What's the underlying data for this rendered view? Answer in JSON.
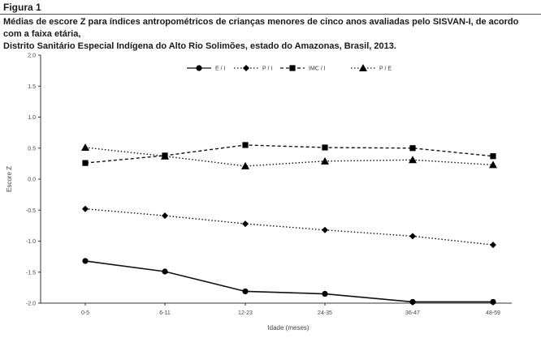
{
  "figure_label": "Figura 1",
  "caption_line1": "Médias de escore Z para índices antropométricos de crianças menores de cinco anos avaliadas pelo SISVAN-I, de acordo com a faixa etária,",
  "caption_line2": "Distrito Sanitário Especial Indígena do Alto Rio Solimões, estado do Amazonas, Brasil, 2013.",
  "chart_data": {
    "type": "line",
    "title": "",
    "xlabel": "Idade (meses)",
    "ylabel": "Escore Z",
    "categories": [
      "0-5",
      "6-11",
      "12-23",
      "24-35",
      "36-47",
      "48-59"
    ],
    "ylim": [
      -2.0,
      2.0
    ],
    "yticks": [
      2.0,
      1.5,
      1.0,
      0.5,
      0.0,
      -0.5,
      -1.0,
      -1.5,
      -2.0
    ],
    "ytick_labels": [
      "2.0",
      "1.5",
      "1.0",
      "0.5",
      "0.0",
      "-0.5",
      "-1.0",
      "-1.5",
      "-2.0"
    ],
    "grid": false,
    "legend_position": "top-center",
    "series": [
      {
        "name": "E / I",
        "values": [
          -1.32,
          -1.49,
          -1.81,
          -1.85,
          -1.98,
          -1.98
        ],
        "marker": "circle",
        "dash": "solid"
      },
      {
        "name": "P / I",
        "values": [
          -0.48,
          -0.59,
          -0.72,
          -0.82,
          -0.92,
          -1.06
        ],
        "marker": "diamond",
        "dash": "dotted"
      },
      {
        "name": "IMC / I",
        "values": [
          0.26,
          0.38,
          0.55,
          0.51,
          0.5,
          0.37
        ],
        "marker": "square",
        "dash": "dashed"
      },
      {
        "name": "P / E",
        "values": [
          0.51,
          0.37,
          0.21,
          0.29,
          0.31,
          0.23
        ],
        "marker": "triangle",
        "dash": "dotted"
      }
    ]
  }
}
